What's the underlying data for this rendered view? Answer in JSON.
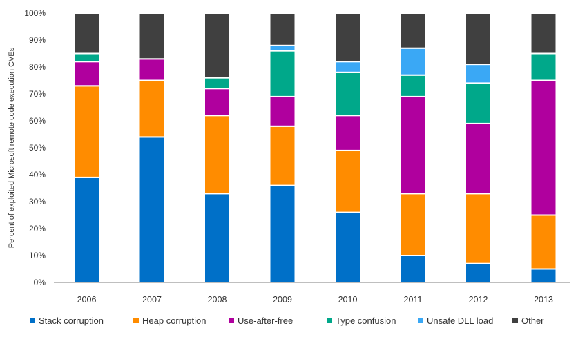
{
  "chart_data": {
    "type": "bar",
    "stacked": true,
    "title": "",
    "xlabel": "",
    "ylabel": "Percent of exploited Microsoft remote code execution CVEs",
    "ylim": [
      0,
      100
    ],
    "yticks": [
      "0%",
      "10%",
      "20%",
      "30%",
      "40%",
      "50%",
      "60%",
      "70%",
      "80%",
      "90%",
      "100%"
    ],
    "grid": false,
    "legend_position": "bottom",
    "categories": [
      "2006",
      "2007",
      "2008",
      "2009",
      "2010",
      "2011",
      "2012",
      "2013"
    ],
    "series": [
      {
        "name": "Stack corruption",
        "color": "#0070C8",
        "values": [
          39,
          54,
          33,
          36,
          26,
          10,
          7,
          5
        ]
      },
      {
        "name": "Heap corruption",
        "color": "#FF8C00",
        "values": [
          34,
          21,
          29,
          22,
          23,
          23,
          26,
          20
        ]
      },
      {
        "name": "Use-after-free",
        "color": "#B0009E",
        "values": [
          9,
          8,
          10,
          11,
          13,
          36,
          26,
          50
        ]
      },
      {
        "name": "Type confusion",
        "color": "#00A88A",
        "values": [
          3,
          0,
          4,
          17,
          16,
          8,
          15,
          10
        ]
      },
      {
        "name": "Unsafe DLL load",
        "color": "#3AA8F5",
        "values": [
          0,
          0,
          0,
          2,
          4,
          10,
          7,
          0
        ]
      },
      {
        "name": "Other",
        "color": "#404040",
        "values": [
          15,
          17,
          24,
          12,
          18,
          13,
          19,
          15
        ]
      }
    ]
  }
}
